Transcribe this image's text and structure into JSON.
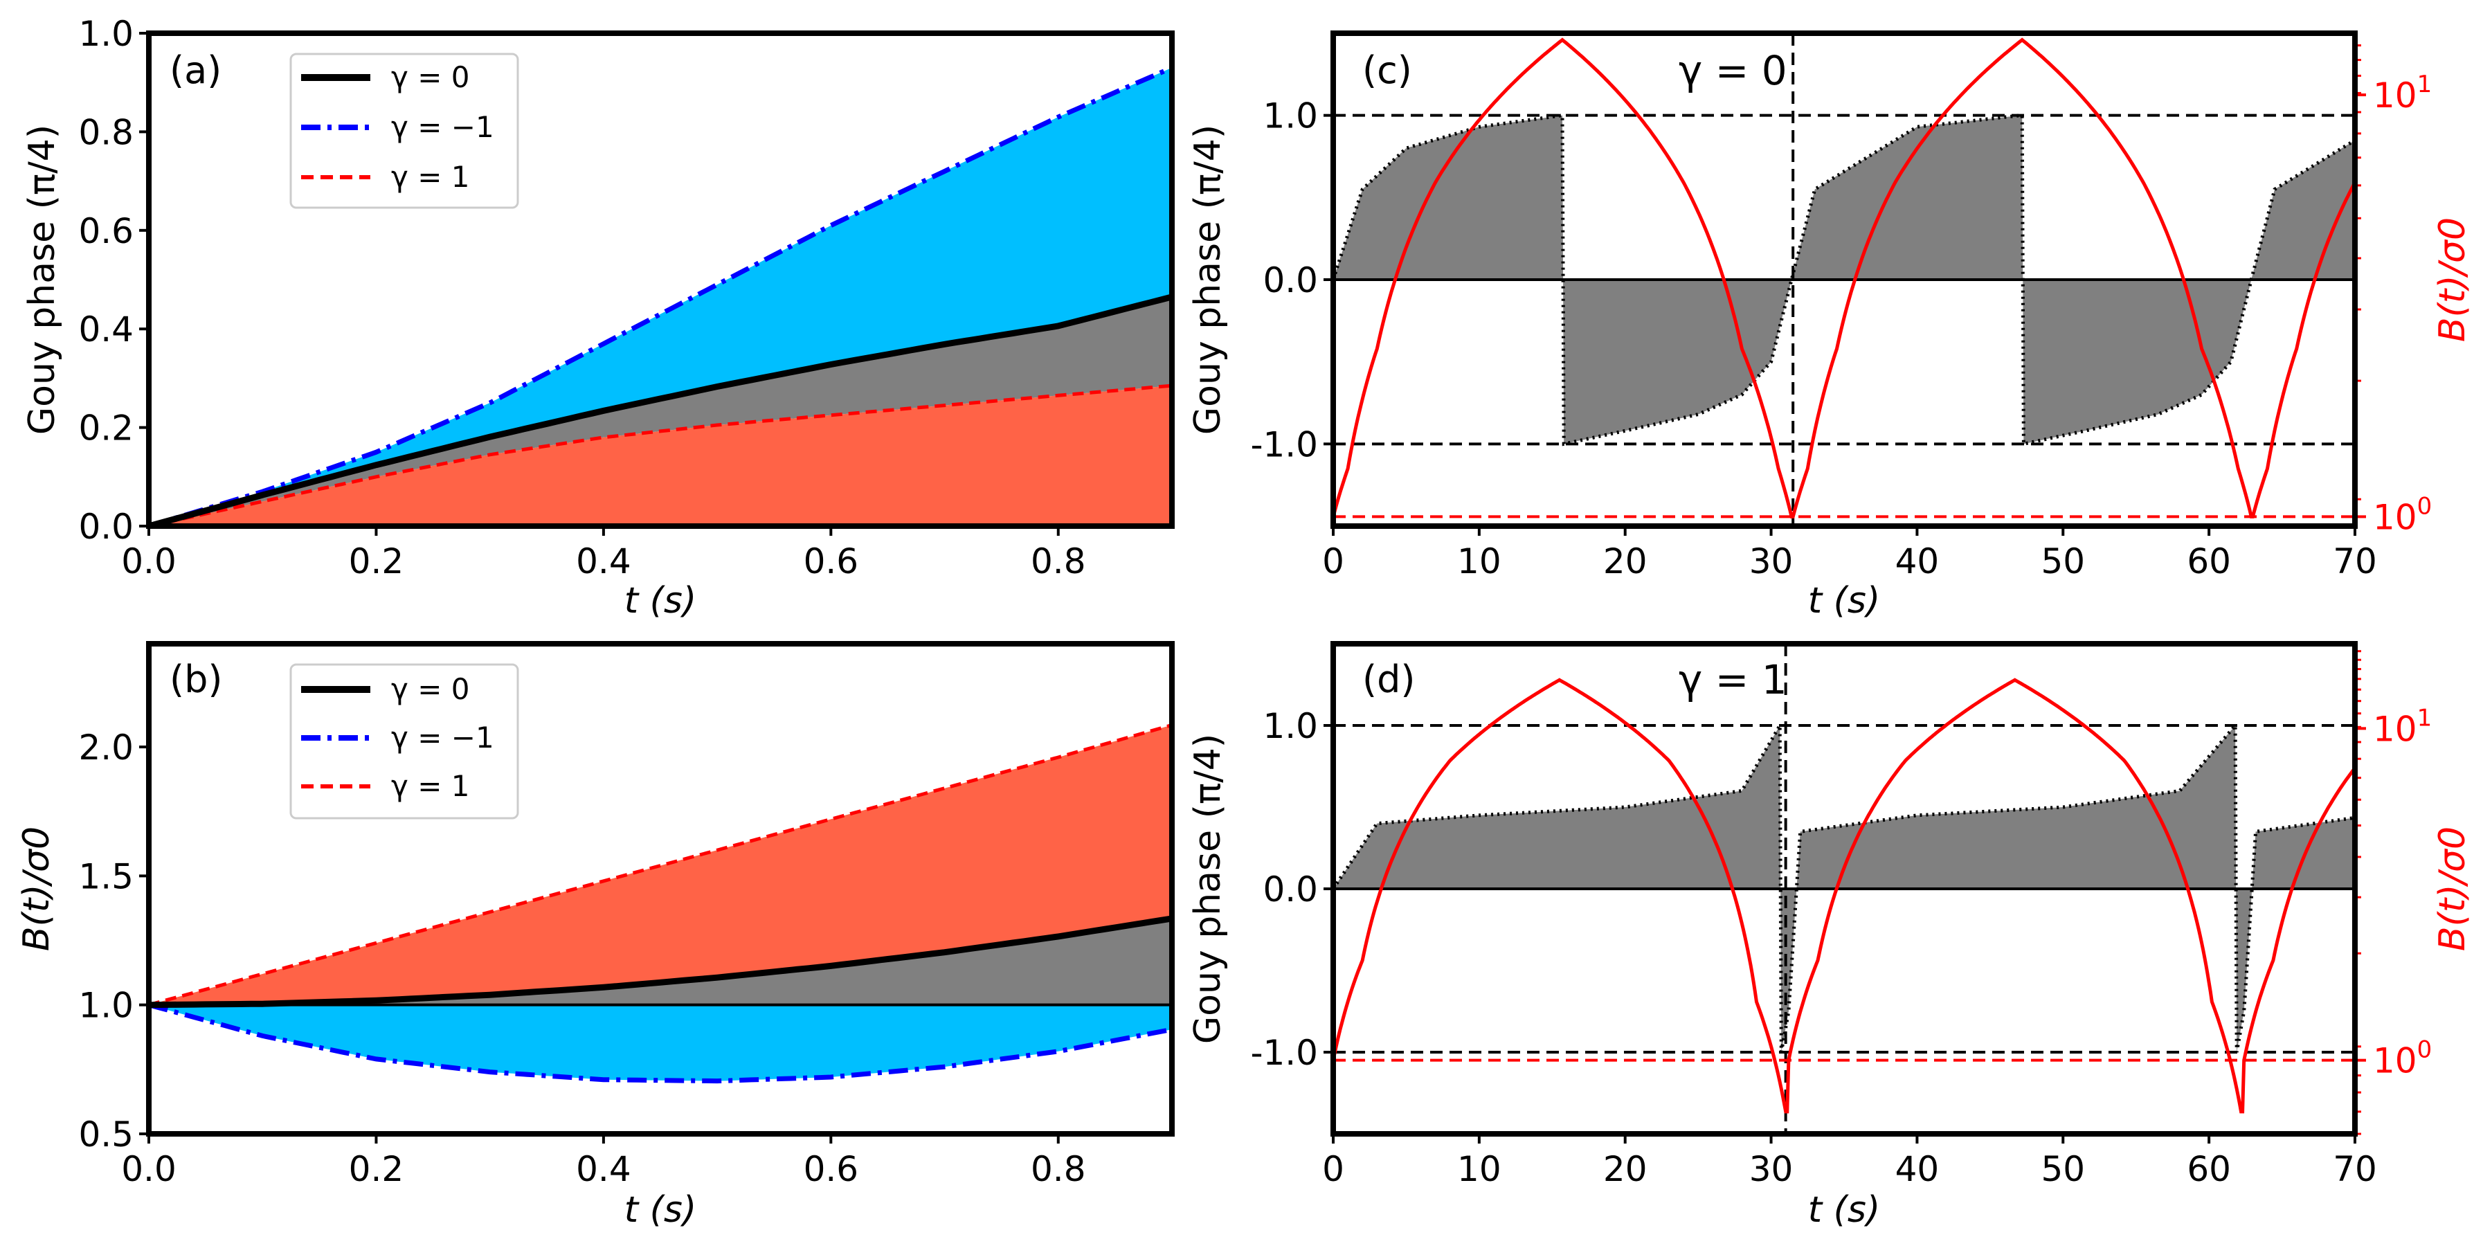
{
  "colors": {
    "gray": "#808080",
    "cyan": "#00BFFF",
    "tomato": "#FF6347",
    "blue": "#0000FF",
    "red": "#FF0000",
    "black": "#000000"
  },
  "chart_data": [
    {
      "id": "a",
      "type": "area",
      "panel_label": "(a)",
      "xlabel": "t (s)",
      "ylabel": "Gouy phase (π/4)",
      "xlim": [
        0,
        0.9
      ],
      "ylim": [
        0,
        1.0
      ],
      "xticks": [
        "0.0",
        "0.2",
        "0.4",
        "0.6",
        "0.8"
      ],
      "yticks": [
        "0.0",
        "0.2",
        "0.4",
        "0.6",
        "0.8",
        "1.0"
      ],
      "legend": [
        "γ = 0",
        "γ = −1",
        "γ = 1"
      ],
      "series": [
        {
          "name": "γ = 0",
          "x": [
            0,
            0.1,
            0.2,
            0.3,
            0.4,
            0.5,
            0.6,
            0.7,
            0.8,
            0.9
          ],
          "values": [
            0,
            0.063,
            0.124,
            0.181,
            0.234,
            0.283,
            0.328,
            0.369,
            0.406,
            0.465
          ]
        },
        {
          "name": "γ = −1",
          "x": [
            0,
            0.1,
            0.2,
            0.3,
            0.4,
            0.5,
            0.6,
            0.7,
            0.8,
            0.9
          ],
          "values": [
            0,
            0.07,
            0.15,
            0.25,
            0.37,
            0.49,
            0.61,
            0.72,
            0.83,
            0.93
          ]
        },
        {
          "name": "γ = 1",
          "x": [
            0,
            0.1,
            0.2,
            0.3,
            0.4,
            0.5,
            0.6,
            0.7,
            0.8,
            0.9
          ],
          "values": [
            0,
            0.05,
            0.1,
            0.145,
            0.18,
            0.205,
            0.225,
            0.245,
            0.265,
            0.285
          ]
        }
      ]
    },
    {
      "id": "b",
      "type": "area",
      "panel_label": "(b)",
      "xlabel": "t (s)",
      "ylabel": "B(t)/σ0",
      "xlim": [
        0,
        0.9
      ],
      "ylim": [
        0.5,
        2.4
      ],
      "xticks": [
        "0.0",
        "0.2",
        "0.4",
        "0.6",
        "0.8"
      ],
      "yticks": [
        "0.5",
        "1.0",
        "1.5",
        "2.0"
      ],
      "legend": [
        "γ = 0",
        "γ = −1",
        "γ = 1"
      ],
      "series": [
        {
          "name": "γ = 0",
          "x": [
            0,
            0.1,
            0.2,
            0.3,
            0.4,
            0.5,
            0.6,
            0.7,
            0.8,
            0.9
          ],
          "values": [
            1.0,
            1.004,
            1.017,
            1.039,
            1.068,
            1.106,
            1.151,
            1.204,
            1.265,
            1.335
          ]
        },
        {
          "name": "γ = −1",
          "x": [
            0,
            0.1,
            0.2,
            0.3,
            0.4,
            0.5,
            0.6,
            0.7,
            0.8,
            0.9
          ],
          "values": [
            1.0,
            0.88,
            0.79,
            0.74,
            0.71,
            0.705,
            0.72,
            0.76,
            0.82,
            0.905
          ]
        },
        {
          "name": "γ = 1",
          "x": [
            0,
            0.1,
            0.2,
            0.3,
            0.4,
            0.5,
            0.6,
            0.7,
            0.8,
            0.9
          ],
          "values": [
            1.0,
            1.12,
            1.24,
            1.36,
            1.48,
            1.6,
            1.72,
            1.84,
            1.96,
            2.085
          ]
        }
      ]
    },
    {
      "id": "c",
      "type": "line",
      "panel_label": "(c)",
      "annotation": "γ = 0",
      "xlabel": "t (s)",
      "ylabel": "Gouy phase (π/4)",
      "y2label": "B(t)/σ0",
      "xlim": [
        0,
        70
      ],
      "ylim": [
        -1.5,
        1.5
      ],
      "y2lim_log": [
        0.95,
        14
      ],
      "xticks": [
        "0",
        "10",
        "20",
        "30",
        "40",
        "50",
        "60",
        "70"
      ],
      "yticks": [
        "-1.0",
        "0.0",
        "1.0"
      ],
      "y2ticks": [
        "10^0",
        "10^1"
      ],
      "period": 31.5,
      "vline_t": 31.5,
      "series": [
        {
          "name": "Gouy phase",
          "x": [
            0,
            2,
            5,
            10,
            15.7,
            15.8,
            20,
            25,
            28,
            30,
            31.4,
            33,
            40,
            47.1
          ],
          "values": [
            0,
            0.55,
            0.8,
            0.93,
            1.0,
            -1.0,
            -0.92,
            -0.82,
            -0.7,
            -0.5,
            0,
            0.55,
            0.93,
            1.0
          ]
        },
        {
          "name": "B(t)/σ0",
          "x": [
            0,
            1,
            3,
            7,
            15.7,
            24,
            28,
            30.5,
            31.4
          ],
          "values": [
            1.0,
            1.3,
            2.5,
            6.2,
            13.5,
            6.2,
            2.5,
            1.3,
            1.0
          ]
        }
      ],
      "hlines": [
        1.0,
        -1.0,
        0.0
      ]
    },
    {
      "id": "d",
      "type": "line",
      "panel_label": "(d)",
      "annotation": "γ = 1",
      "xlabel": "t (s)",
      "ylabel": "Gouy phase (π/4)",
      "y2label": "B(t)/σ0",
      "xlim": [
        0,
        70
      ],
      "ylim": [
        -1.5,
        1.5
      ],
      "y2lim_log": [
        0.6,
        18
      ],
      "xticks": [
        "0",
        "10",
        "20",
        "30",
        "40",
        "50",
        "60",
        "70"
      ],
      "yticks": [
        "-1.0",
        "0.0",
        "1.0"
      ],
      "y2ticks": [
        "10^0",
        "10^1"
      ],
      "period": 31.2,
      "vline_t": 31.0,
      "series": [
        {
          "name": "Gouy phase",
          "x": [
            0,
            3,
            10,
            20,
            28,
            30.6,
            30.7,
            31.2,
            32,
            40,
            50,
            58,
            61.8
          ],
          "values": [
            0,
            0.4,
            0.45,
            0.5,
            0.6,
            1.0,
            -1.0,
            -0.75,
            0.35,
            0.45,
            0.5,
            0.6,
            1.0
          ]
        },
        {
          "name": "B(t)/σ0",
          "x": [
            0,
            2,
            8,
            15.5,
            23,
            29,
            31.0
          ],
          "values": [
            1.0,
            2.0,
            8.0,
            14.0,
            8.0,
            1.5,
            0.7
          ]
        }
      ],
      "hlines": [
        1.0,
        -1.0,
        0.0
      ]
    }
  ]
}
